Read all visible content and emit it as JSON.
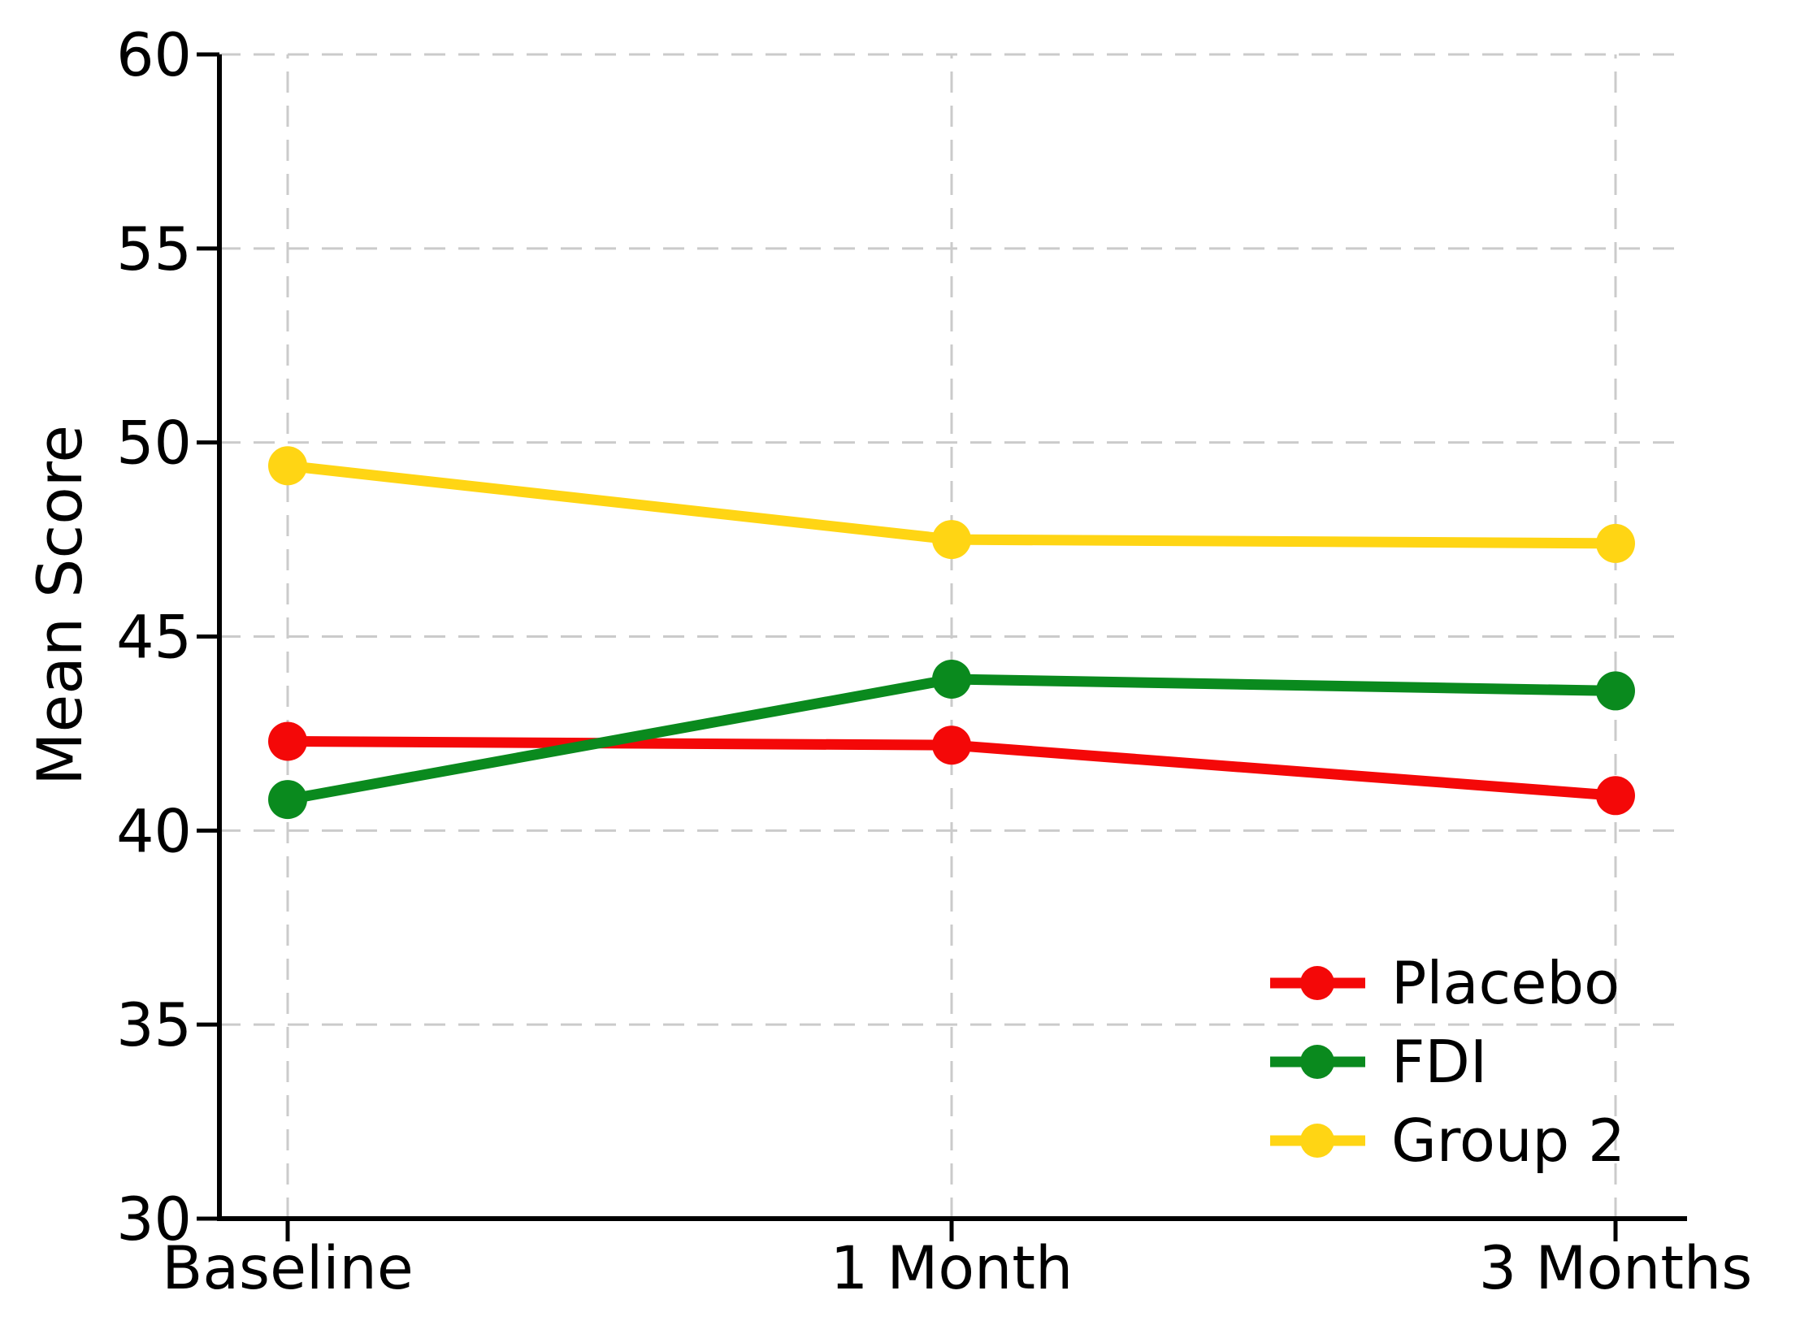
{
  "chart_data": {
    "type": "line",
    "ylabel": "Mean Score",
    "categories": [
      "Baseline",
      "1 Month",
      "3 Months"
    ],
    "series": [
      {
        "name": "Placebo",
        "color": "#f40808",
        "values": [
          42.3,
          42.2,
          40.9
        ]
      },
      {
        "name": "FDI",
        "color": "#0a8a1e",
        "values": [
          40.8,
          43.9,
          43.6
        ]
      },
      {
        "name": "Group 2",
        "color": "#ffd514",
        "values": [
          49.4,
          47.5,
          47.4
        ]
      }
    ],
    "ylim": [
      30,
      60
    ],
    "yticks": [
      30,
      35,
      40,
      45,
      50,
      55,
      60
    ],
    "grid": true,
    "grid_style": "dashed",
    "marker": "circle",
    "legend_position": "lower-right",
    "legend_frame": false
  },
  "colors": {
    "grid": "#cbcbcb",
    "axis": "#000000",
    "background": "#ffffff"
  }
}
